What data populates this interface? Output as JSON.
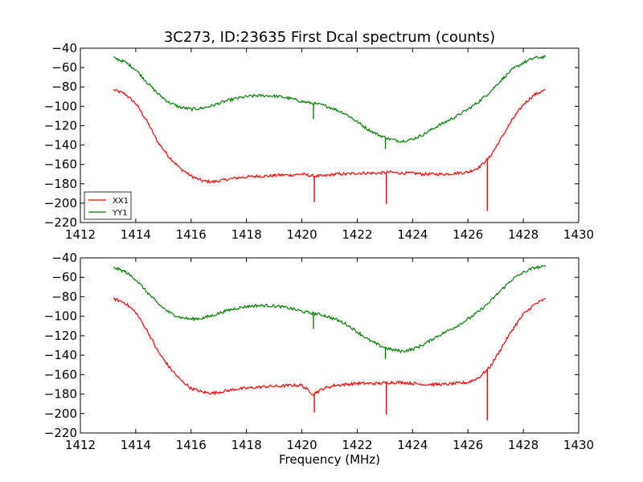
{
  "figure": {
    "title": "3C273, ID:23635 First Dcal spectrum (counts)",
    "xlabel": "Frequency (MHz)"
  },
  "chart_data": [
    {
      "type": "line",
      "title": "3C273, ID:23635 First Dcal spectrum (counts)",
      "xlabel": "",
      "ylabel": "",
      "xlim": [
        1412,
        1430
      ],
      "ylim": [
        -220,
        -40
      ],
      "xticks": [
        1412,
        1414,
        1416,
        1418,
        1420,
        1422,
        1424,
        1426,
        1428,
        1430
      ],
      "yticks": [
        -40,
        -60,
        -80,
        -100,
        -120,
        -140,
        -160,
        -180,
        -200,
        -220
      ],
      "tick_labels": {
        "x": [
          "1412",
          "1414",
          "1416",
          "1418",
          "1420",
          "1422",
          "1424",
          "1426",
          "1428",
          "1430"
        ],
        "y": [
          "−40",
          "−60",
          "−80",
          "−100",
          "−120",
          "−140",
          "−160",
          "−180",
          "−200",
          "−220"
        ]
      },
      "legend": {
        "placement": "lower-left"
      },
      "grid": false,
      "series": [
        {
          "name": "XX1",
          "color": "#ff0000",
          "x": [
            1413.2,
            1413.6,
            1414.0,
            1414.4,
            1414.8,
            1415.2,
            1415.6,
            1416.0,
            1416.4,
            1416.8,
            1417.2,
            1417.6,
            1418.0,
            1418.4,
            1418.8,
            1419.2,
            1419.6,
            1420.0,
            1420.4,
            1420.8,
            1421.2,
            1421.6,
            1422.0,
            1422.4,
            1422.8,
            1423.2,
            1423.6,
            1424.0,
            1424.4,
            1424.8,
            1425.2,
            1425.6,
            1426.0,
            1426.4,
            1426.8,
            1427.2,
            1427.6,
            1428.0,
            1428.4,
            1428.8
          ],
          "y": [
            -83,
            -87,
            -97,
            -115,
            -137,
            -152,
            -164,
            -172,
            -177,
            -178,
            -176,
            -174,
            -173,
            -172,
            -172,
            -171,
            -171,
            -170,
            -172,
            -172,
            -170,
            -170,
            -169,
            -169,
            -169,
            -168,
            -169,
            -169,
            -170,
            -170,
            -170,
            -169,
            -168,
            -163,
            -152,
            -133,
            -114,
            -98,
            -88,
            -83
          ],
          "spikes": [
            {
              "x": 1420.45,
              "y": -199
            },
            {
              "x": 1423.05,
              "y": -201
            },
            {
              "x": 1426.7,
              "y": -208
            }
          ]
        },
        {
          "name": "YY1",
          "color": "#008000",
          "x": [
            1413.2,
            1413.6,
            1414.0,
            1414.4,
            1414.8,
            1415.2,
            1415.6,
            1416.0,
            1416.4,
            1416.8,
            1417.2,
            1417.6,
            1418.0,
            1418.4,
            1418.8,
            1419.2,
            1419.6,
            1420.0,
            1420.4,
            1420.8,
            1421.2,
            1421.6,
            1422.0,
            1422.4,
            1422.8,
            1423.2,
            1423.6,
            1424.0,
            1424.4,
            1424.8,
            1425.2,
            1425.6,
            1426.0,
            1426.4,
            1426.8,
            1427.2,
            1427.6,
            1428.0,
            1428.4,
            1428.8
          ],
          "y": [
            -50,
            -54,
            -62,
            -75,
            -87,
            -96,
            -101,
            -103,
            -102,
            -99,
            -95,
            -92,
            -90,
            -89,
            -89,
            -90,
            -92,
            -95,
            -97,
            -99,
            -103,
            -108,
            -116,
            -124,
            -130,
            -134,
            -136,
            -134,
            -129,
            -122,
            -116,
            -110,
            -103,
            -95,
            -85,
            -73,
            -62,
            -55,
            -50,
            -49
          ],
          "spikes": [
            {
              "x": 1420.42,
              "y": -113
            },
            {
              "x": 1423.02,
              "y": -144
            }
          ]
        }
      ]
    },
    {
      "type": "line",
      "title": "",
      "xlabel": "Frequency (MHz)",
      "ylabel": "",
      "xlim": [
        1412,
        1430
      ],
      "ylim": [
        -220,
        -40
      ],
      "xticks": [
        1412,
        1414,
        1416,
        1418,
        1420,
        1422,
        1424,
        1426,
        1428,
        1430
      ],
      "yticks": [
        -40,
        -60,
        -80,
        -100,
        -120,
        -140,
        -160,
        -180,
        -200,
        -220
      ],
      "tick_labels": {
        "x": [
          "1412",
          "1414",
          "1416",
          "1418",
          "1420",
          "1422",
          "1424",
          "1426",
          "1428",
          "1430"
        ],
        "y": [
          "−40",
          "−60",
          "−80",
          "−100",
          "−120",
          "−140",
          "−160",
          "−180",
          "−200",
          "−220"
        ]
      },
      "grid": false,
      "series": [
        {
          "color": "#ff0000",
          "x": [
            1413.2,
            1413.6,
            1414.0,
            1414.4,
            1414.8,
            1415.2,
            1415.6,
            1416.0,
            1416.4,
            1416.8,
            1417.2,
            1417.6,
            1418.0,
            1418.4,
            1418.8,
            1419.2,
            1419.6,
            1420.0,
            1420.4,
            1420.8,
            1421.2,
            1421.6,
            1422.0,
            1422.4,
            1422.8,
            1423.2,
            1423.6,
            1424.0,
            1424.4,
            1424.8,
            1425.2,
            1425.6,
            1426.0,
            1426.4,
            1426.8,
            1427.2,
            1427.6,
            1428.0,
            1428.4,
            1428.8
          ],
          "y": [
            -82,
            -86,
            -96,
            -114,
            -136,
            -152,
            -165,
            -174,
            -178,
            -179,
            -177,
            -175,
            -174,
            -173,
            -172,
            -172,
            -171,
            -171,
            -180,
            -174,
            -171,
            -170,
            -169,
            -169,
            -169,
            -168,
            -168,
            -169,
            -170,
            -170,
            -170,
            -169,
            -168,
            -163,
            -152,
            -133,
            -114,
            -98,
            -88,
            -82
          ],
          "spikes": [
            {
              "x": 1420.45,
              "y": -199
            },
            {
              "x": 1423.05,
              "y": -201
            },
            {
              "x": 1426.7,
              "y": -207
            }
          ]
        },
        {
          "color": "#008000",
          "x": [
            1413.2,
            1413.6,
            1414.0,
            1414.4,
            1414.8,
            1415.2,
            1415.6,
            1416.0,
            1416.4,
            1416.8,
            1417.2,
            1417.6,
            1418.0,
            1418.4,
            1418.8,
            1419.2,
            1419.6,
            1420.0,
            1420.4,
            1420.8,
            1421.2,
            1421.6,
            1422.0,
            1422.4,
            1422.8,
            1423.2,
            1423.6,
            1424.0,
            1424.4,
            1424.8,
            1425.2,
            1425.6,
            1426.0,
            1426.4,
            1426.8,
            1427.2,
            1427.6,
            1428.0,
            1428.4,
            1428.8
          ],
          "y": [
            -50,
            -54,
            -62,
            -75,
            -87,
            -96,
            -101,
            -103,
            -102,
            -99,
            -95,
            -92,
            -90,
            -89,
            -89,
            -90,
            -92,
            -95,
            -97,
            -99,
            -103,
            -108,
            -116,
            -124,
            -130,
            -134,
            -136,
            -134,
            -129,
            -122,
            -116,
            -110,
            -103,
            -95,
            -85,
            -73,
            -62,
            -55,
            -50,
            -49
          ],
          "spikes": [
            {
              "x": 1420.42,
              "y": -113
            },
            {
              "x": 1423.02,
              "y": -144
            }
          ]
        }
      ]
    }
  ]
}
